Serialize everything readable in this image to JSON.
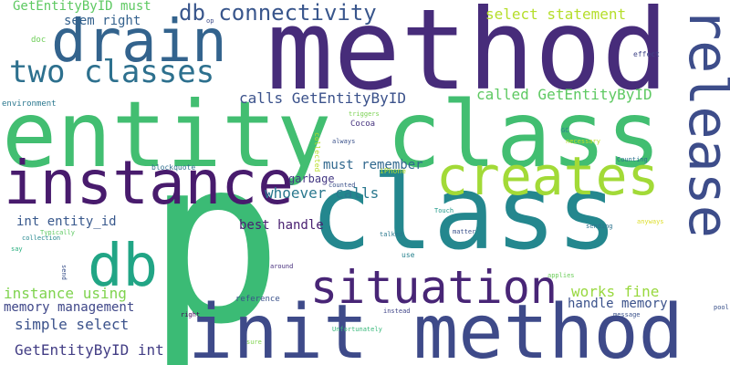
{
  "title": "",
  "words": [
    {
      "text": "p"
    },
    {
      "text": "method"
    },
    {
      "text": "entity class"
    },
    {
      "text": "class"
    },
    {
      "text": "instance"
    },
    {
      "text": "init method"
    },
    {
      "text": "creates"
    },
    {
      "text": "release"
    },
    {
      "text": "drain"
    },
    {
      "text": "db"
    },
    {
      "text": "situation"
    },
    {
      "text": "two classes"
    },
    {
      "text": "db connectivity"
    },
    {
      "text": "GetEntityByID must"
    },
    {
      "text": "seem right"
    },
    {
      "text": "select statement"
    },
    {
      "text": "calls GetEntityByID"
    },
    {
      "text": "called GetEntityByID"
    },
    {
      "text": "must remember"
    },
    {
      "text": "whoever calls"
    },
    {
      "text": "garbage"
    },
    {
      "text": "int entity_id"
    },
    {
      "text": "best handle"
    },
    {
      "text": "instance using"
    },
    {
      "text": "memory management"
    },
    {
      "text": "works fine"
    },
    {
      "text": "handle memory"
    },
    {
      "text": "simple select"
    },
    {
      "text": "GetEntityByID int"
    },
    {
      "text": "doc"
    },
    {
      "text": "environment"
    },
    {
      "text": "op"
    },
    {
      "text": "effect"
    },
    {
      "text": "triggers"
    },
    {
      "text": "Cocoa"
    },
    {
      "text": "always"
    },
    {
      "text": "collected"
    },
    {
      "text": "GC"
    },
    {
      "text": "necessary"
    },
    {
      "text": "Counting"
    },
    {
      "text": "iPhone"
    },
    {
      "text": "counted"
    },
    {
      "text": "blockquote"
    },
    {
      "text": "Typically"
    },
    {
      "text": "collection"
    },
    {
      "text": "say"
    },
    {
      "text": "Touch"
    },
    {
      "text": "sending"
    },
    {
      "text": "anyways"
    },
    {
      "text": "talked"
    },
    {
      "text": "matter"
    },
    {
      "text": "use"
    },
    {
      "text": "around"
    },
    {
      "text": "send"
    },
    {
      "text": "applies"
    },
    {
      "text": "reference"
    },
    {
      "text": "pool"
    },
    {
      "text": "right"
    },
    {
      "text": "instead"
    },
    {
      "text": "message"
    },
    {
      "text": "sure"
    },
    {
      "text": "Unfortunately"
    }
  ]
}
